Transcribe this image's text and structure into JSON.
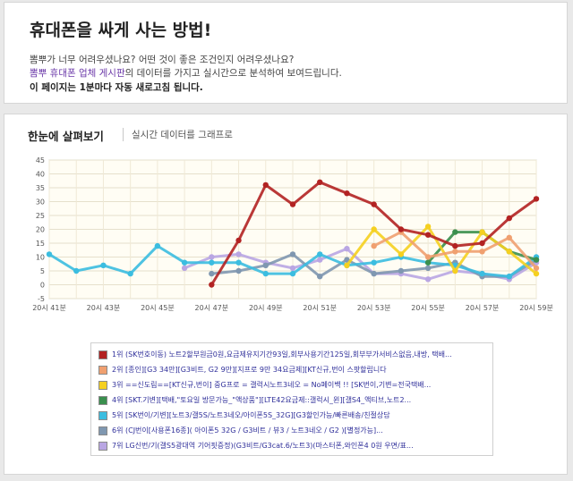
{
  "header": {
    "title": "휴대폰을 싸게 사는 방법!",
    "line1": "뽐뿌가 너무 어려우셨나요? 어떤 것이 좋은 조건인지 어려우셨나요?",
    "line2_highlight": "뽐뿌 휴대폰 업체 게시판",
    "line2_rest": "의 데이터를 가지고 실시간으로 분석하여 보여드립니다.",
    "line3": "이 페이지는 1분마다 자동 새로고침 됩니다."
  },
  "chart_panel": {
    "title": "한눈에 살펴보기",
    "subtitle": "실시간 데이터를 그래프로"
  },
  "chart_data": {
    "type": "line",
    "ylim": [
      -5,
      45
    ],
    "yticks": [
      -5,
      0,
      5,
      10,
      15,
      20,
      25,
      30,
      35,
      40,
      45
    ],
    "x": [
      "20시 41분",
      "20시 42분",
      "20시 43분",
      "20시 44분",
      "20시 45분",
      "20시 46분",
      "20시 47분",
      "20시 48분",
      "20시 49분",
      "20시 50분",
      "20시 51분",
      "20시 52분",
      "20시 53분",
      "20시 54분",
      "20시 55분",
      "20시 56분",
      "20시 57분",
      "20시 58분",
      "20시 59분"
    ],
    "xtick_labels": [
      "20시 41분",
      "20시 43분",
      "20시 45분",
      "20시 47분",
      "20시 49분",
      "20시 51분",
      "20시 53분",
      "20시 55분",
      "20시 57분",
      "20시 59분"
    ],
    "grid": true,
    "legend_position": "bottom",
    "series": [
      {
        "name": "1위 (SK번호이동) 노트2할부원금0원,요금제유지기간93일,회부사용기간125일,회부부가서비스없음,내방, 택배...",
        "color": "#b22222",
        "values": [
          null,
          null,
          null,
          null,
          null,
          null,
          0,
          16,
          36,
          29,
          37,
          33,
          29,
          20,
          18,
          14,
          15,
          24,
          31
        ]
      },
      {
        "name": "2위 [종인][G3 34만][G3비트, G2 9만][지프로 9만 34요금제][KT신규,번이 스팟할립니다",
        "color": "#f0a070",
        "values": [
          null,
          null,
          null,
          null,
          null,
          null,
          null,
          null,
          null,
          null,
          null,
          null,
          14,
          19,
          10,
          12,
          12,
          17,
          6
        ]
      },
      {
        "name": "3위 ==신도림==[KT신규,번이] 중G프로 = 갤럭시노트3네오 = No페이백 !! [SK번이,기변=전국택배...",
        "color": "#f5d020",
        "values": [
          null,
          null,
          null,
          null,
          null,
          null,
          null,
          null,
          null,
          null,
          null,
          7,
          20,
          11,
          21,
          5,
          19,
          12,
          4
        ]
      },
      {
        "name": "4위 [SKT.기변][택배,\"토요일 방문가능_\"액상품\"][LTE42요금제::갤럭시_윈][갤S4_액티브,노트2...",
        "color": "#3a8f4e",
        "values": [
          null,
          null,
          null,
          null,
          null,
          null,
          null,
          null,
          null,
          null,
          null,
          null,
          null,
          null,
          8,
          19,
          19,
          12,
          9
        ]
      },
      {
        "name": "5위 [SK번이/기변][노트3/갤5S/노트3네오/아이폰5S_32G][G3할인가능/빠른배송/친절상담",
        "color": "#3bbde0",
        "values": [
          11,
          5,
          7,
          4,
          14,
          8,
          8,
          8,
          4,
          4,
          11,
          7,
          8,
          10,
          8,
          7,
          4,
          3,
          10
        ]
      },
      {
        "name": "6위 (CJ번이[사용폰16종]( 아이폰5 32G / G3비트 / 뷰3 / 노트3네오 / G2 )[별정가능]...",
        "color": "#7f97b0",
        "values": [
          null,
          null,
          null,
          null,
          null,
          null,
          4,
          5,
          7,
          11,
          3,
          9,
          4,
          5,
          6,
          8,
          3,
          3,
          9
        ]
      },
      {
        "name": "7위 LG신번/기(갤S5광대역 기어핏증정)(G3비트/G3cat.6/노트3)(마스터폰,와인폰4 0원 우면/표...",
        "color": "#b9a6e3",
        "values": [
          null,
          null,
          null,
          null,
          null,
          6,
          10,
          11,
          8,
          6,
          9,
          13,
          4,
          4,
          2,
          5,
          4,
          2,
          8
        ]
      }
    ]
  }
}
